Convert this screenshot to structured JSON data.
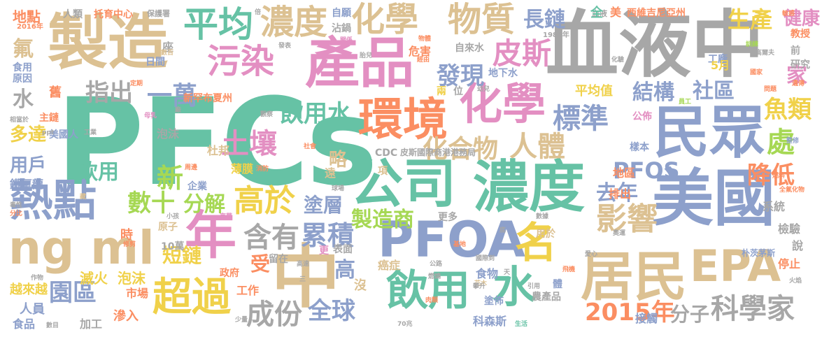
{
  "palette": {
    "gray": "#a7a7a7",
    "tan": "#dcc192",
    "pink": "#e38fc2",
    "green": "#66c2a5",
    "orange": "#fb8e62",
    "blue": "#8da0cb",
    "lime": "#a6d854",
    "yellow": "#f0d14a"
  },
  "words": [
    {
      "text": "PFCs",
      "color": "green"
    },
    {
      "text": "血液中",
      "color": "gray"
    },
    {
      "text": "製造",
      "color": "tan"
    },
    {
      "text": "產品",
      "color": "pink"
    },
    {
      "text": "公司",
      "color": "green"
    },
    {
      "text": "濃度",
      "color": "green"
    },
    {
      "text": "美國",
      "color": "blue"
    },
    {
      "text": "居民",
      "color": "tan"
    },
    {
      "text": "PFOA",
      "color": "blue"
    },
    {
      "text": "ng ml",
      "color": "tan"
    },
    {
      "text": "中",
      "color": "tan"
    },
    {
      "text": "年",
      "color": "pink"
    },
    {
      "text": "環境",
      "color": "orange"
    },
    {
      "text": "化學",
      "color": "pink"
    },
    {
      "text": "民眾",
      "color": "blue"
    },
    {
      "text": "熱點",
      "color": "blue"
    },
    {
      "text": "EPA",
      "color": "tan"
    },
    {
      "text": "飲用",
      "color": "green"
    },
    {
      "text": "水",
      "color": "green"
    },
    {
      "text": "超過",
      "color": "yellow"
    },
    {
      "text": "濃度",
      "color": "tan"
    },
    {
      "text": "平均",
      "color": "green"
    },
    {
      "text": "化學",
      "color": "tan"
    },
    {
      "text": "物質",
      "color": "tan"
    },
    {
      "text": "污染",
      "color": "pink"
    },
    {
      "text": "名",
      "color": "yellow"
    },
    {
      "text": "高於",
      "color": "yellow"
    },
    {
      "text": "科學家",
      "color": "gray"
    },
    {
      "text": "影響",
      "color": "tan"
    },
    {
      "text": "累積",
      "color": "blue"
    },
    {
      "text": "標準",
      "color": "blue"
    },
    {
      "text": "皮斯",
      "color": "pink"
    },
    {
      "text": "發現",
      "color": "blue"
    },
    {
      "text": "飲用水",
      "color": "green"
    },
    {
      "text": "含有",
      "color": "gray"
    },
    {
      "text": "全球",
      "color": "blue"
    },
    {
      "text": "成份",
      "color": "gray"
    },
    {
      "text": "2015年",
      "color": "orange"
    },
    {
      "text": "化合物",
      "color": "tan"
    },
    {
      "text": "人體",
      "color": "tan"
    },
    {
      "text": "一萬",
      "color": "blue"
    },
    {
      "text": "指出",
      "color": "gray"
    },
    {
      "text": "降低",
      "color": "orange"
    },
    {
      "text": "處",
      "color": "lime"
    },
    {
      "text": "數十",
      "color": "lime"
    },
    {
      "text": "分解",
      "color": "lime"
    },
    {
      "text": "園區",
      "color": "blue"
    },
    {
      "text": "土壤",
      "color": "pink"
    },
    {
      "text": "PFOS",
      "color": "blue"
    },
    {
      "text": "製造商",
      "color": "lime"
    },
    {
      "text": "長鏈",
      "color": "blue"
    },
    {
      "text": "生產",
      "color": "yellow"
    },
    {
      "text": "健康",
      "color": "pink"
    },
    {
      "text": "魚類",
      "color": "yellow"
    },
    {
      "text": "結構",
      "color": "blue"
    },
    {
      "text": "社區",
      "color": "blue"
    },
    {
      "text": "家",
      "color": "pink"
    },
    {
      "text": "新",
      "color": "lime"
    },
    {
      "text": "去年",
      "color": "blue"
    },
    {
      "text": "略",
      "color": "tan"
    },
    {
      "text": "塗層",
      "color": "blue"
    },
    {
      "text": "飲用",
      "color": "green"
    },
    {
      "text": "分子",
      "color": "gray"
    },
    {
      "text": "短鏈",
      "color": "yellow"
    },
    {
      "text": "受",
      "color": "orange"
    },
    {
      "text": "高",
      "color": "blue"
    },
    {
      "text": "地點",
      "color": "orange"
    },
    {
      "text": "人類",
      "color": "gray"
    },
    {
      "text": "托育中心",
      "color": "orange"
    },
    {
      "text": "保護署",
      "color": "gray"
    },
    {
      "text": "自願",
      "color": "blue"
    },
    {
      "text": "沾鍋",
      "color": "gray"
    },
    {
      "text": "血液",
      "color": "gray"
    },
    {
      "text": "全",
      "color": "green"
    },
    {
      "text": "美",
      "color": "orange"
    },
    {
      "text": "西維吉尼亞州",
      "color": "orange"
    },
    {
      "text": "氟",
      "color": "tan"
    },
    {
      "text": "水",
      "color": "gray"
    },
    {
      "text": "食用",
      "color": "blue"
    },
    {
      "text": "原因",
      "color": "blue"
    },
    {
      "text": "舊",
      "color": "orange"
    },
    {
      "text": "主鏈",
      "color": "orange"
    },
    {
      "text": "多達",
      "color": "yellow"
    },
    {
      "text": "用戶",
      "color": "blue"
    },
    {
      "text": "鐵氟龍",
      "color": "blue"
    },
    {
      "text": "越來越",
      "color": "yellow"
    },
    {
      "text": "人員",
      "color": "blue"
    },
    {
      "text": "食品",
      "color": "blue"
    },
    {
      "text": "泡沫",
      "color": "gray"
    },
    {
      "text": "滅火",
      "color": "yellow"
    },
    {
      "text": "泡沫",
      "color": "yellow"
    },
    {
      "text": "市場",
      "color": "orange"
    },
    {
      "text": "加工",
      "color": "gray"
    },
    {
      "text": "滲入",
      "color": "orange"
    },
    {
      "text": "工作",
      "color": "orange"
    },
    {
      "text": "10萬",
      "color": "gray"
    },
    {
      "text": "時",
      "color": "orange"
    },
    {
      "text": "日間",
      "color": "blue"
    },
    {
      "text": "座",
      "color": "gray"
    },
    {
      "text": "新罕布夏州",
      "color": "orange"
    },
    {
      "text": "美國人",
      "color": "blue"
    },
    {
      "text": "杜邦",
      "color": "tan"
    },
    {
      "text": "薄膜",
      "color": "yellow"
    },
    {
      "text": "原子",
      "color": "tan"
    },
    {
      "text": "企業",
      "color": "blue"
    },
    {
      "text": "政府",
      "color": "orange"
    },
    {
      "text": "留在",
      "color": "gray"
    },
    {
      "text": "表面",
      "color": "gray"
    },
    {
      "text": "更多",
      "color": "gray"
    },
    {
      "text": "更",
      "color": "pink"
    },
    {
      "text": "遠",
      "color": "tan"
    },
    {
      "text": "項",
      "color": "tan"
    },
    {
      "text": "沒",
      "color": "tan"
    },
    {
      "text": "癌症",
      "color": "tan"
    },
    {
      "text": "食物",
      "color": "blue"
    },
    {
      "text": "用於",
      "color": "tan"
    },
    {
      "text": "體",
      "color": "blue"
    },
    {
      "text": "農產品",
      "color": "gray"
    },
    {
      "text": "科森斯",
      "color": "blue"
    },
    {
      "text": "接觸",
      "color": "blue"
    },
    {
      "text": "自來水",
      "color": "gray"
    },
    {
      "text": "地下水",
      "color": "blue"
    },
    {
      "text": "位",
      "color": "gray"
    },
    {
      "text": "兩",
      "color": "yellow"
    },
    {
      "text": "危害",
      "color": "orange"
    },
    {
      "text": "平均值",
      "color": "yellow"
    },
    {
      "text": "公佈",
      "color": "pink"
    },
    {
      "text": "樣本",
      "color": "blue"
    },
    {
      "text": "地區",
      "color": "orange"
    },
    {
      "text": "排出",
      "color": "orange"
    },
    {
      "text": "系統",
      "color": "gray"
    },
    {
      "text": "檢驗",
      "color": "gray"
    },
    {
      "text": "說",
      "color": "gray"
    },
    {
      "text": "停止",
      "color": "orange"
    },
    {
      "text": "教授",
      "color": "orange"
    },
    {
      "text": "前",
      "color": "gray"
    },
    {
      "text": "研究",
      "color": "gray"
    },
    {
      "text": "工廠",
      "color": "blue"
    },
    {
      "text": "5月",
      "color": "yellow"
    },
    {
      "text": "CDC",
      "color": "gray"
    },
    {
      "text": "皮斯國際商港港務局",
      "color": "gray"
    },
    {
      "text": "塗佈",
      "color": "blue"
    },
    {
      "text": "朴茨茅斯",
      "color": "blue"
    },
    {
      "text": "1988年",
      "color": "gray"
    },
    {
      "text": "2016年",
      "color": "orange"
    },
    {
      "text": "國家",
      "color": "orange"
    },
    {
      "text": "訓練",
      "color": "lime"
    },
    {
      "text": "化驗",
      "color": "gray"
    },
    {
      "text": "高爾夫",
      "color": "gray"
    },
    {
      "text": "員工",
      "color": "lime"
    },
    {
      "text": "發表",
      "color": "gray"
    },
    {
      "text": "關係",
      "color": "pink"
    },
    {
      "text": "胎兒",
      "color": "gray"
    },
    {
      "text": "物體",
      "color": "orange"
    },
    {
      "text": "經由",
      "color": "orange"
    },
    {
      "text": "幼兒",
      "color": "gray"
    },
    {
      "text": "定期",
      "color": "orange"
    },
    {
      "text": "母乳",
      "color": "pink"
    },
    {
      "text": "整修",
      "color": "blue"
    },
    {
      "text": "全氟化物",
      "color": "orange"
    },
    {
      "text": "遺傳",
      "color": "orange"
    },
    {
      "text": "問題",
      "color": "orange"
    },
    {
      "text": "敏感",
      "color": "orange"
    },
    {
      "text": "數百",
      "color": "tan"
    },
    {
      "text": "倍",
      "color": "gray"
    },
    {
      "text": "球場",
      "color": "gray"
    },
    {
      "text": "毒性",
      "color": "gray"
    },
    {
      "text": "分比",
      "color": "orange"
    },
    {
      "text": "修剪",
      "color": "orange"
    },
    {
      "text": "作物",
      "color": "gray"
    },
    {
      "text": "數目",
      "color": "gray"
    },
    {
      "text": "70兆",
      "color": "gray"
    },
    {
      "text": "生活",
      "color": "green"
    },
    {
      "text": "引用",
      "color": "gray"
    },
    {
      "text": "飛機",
      "color": "orange"
    },
    {
      "text": "奧運",
      "color": "gray"
    },
    {
      "text": "燃料",
      "color": "orange"
    },
    {
      "text": "火焰",
      "color": "gray"
    },
    {
      "text": "愛心",
      "color": "gray"
    },
    {
      "text": "花木",
      "color": "tan"
    },
    {
      "text": "肉類",
      "color": "orange"
    },
    {
      "text": "攀升",
      "color": "gray"
    },
    {
      "text": "基地",
      "color": "orange"
    },
    {
      "text": "國際到",
      "color": "gray"
    },
    {
      "text": "高速",
      "color": "gray"
    },
    {
      "text": "公路",
      "color": "gray"
    },
    {
      "text": "消防",
      "color": "orange"
    },
    {
      "text": "社會",
      "color": "orange"
    },
    {
      "text": "周邊",
      "color": "orange"
    },
    {
      "text": "觀察",
      "color": "gray"
    },
    {
      "text": "京華",
      "color": "pink"
    },
    {
      "text": "小孩",
      "color": "gray"
    },
    {
      "text": "數據",
      "color": "gray"
    },
    {
      "text": "相當於",
      "color": "gray"
    },
    {
      "text": "ppt",
      "color": "gray"
    },
    {
      "text": "工業",
      "color": "gray"
    },
    {
      "text": "藏",
      "color": "tan"
    },
    {
      "text": "少量",
      "color": "gray"
    },
    {
      "text": "三",
      "color": "gray"
    },
    {
      "text": "天",
      "color": "gray"
    },
    {
      "text": "底",
      "color": "gray"
    },
    {
      "text": "燃燒",
      "color": "gray"
    },
    {
      "text": "廠",
      "color": "gray"
    }
  ]
}
